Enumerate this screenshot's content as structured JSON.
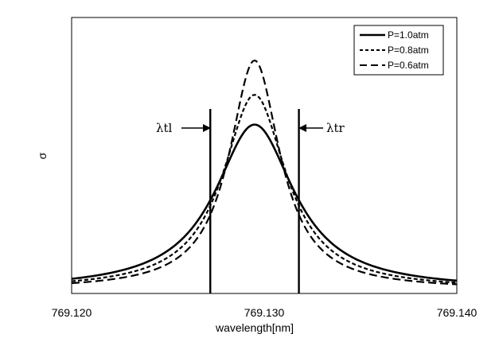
{
  "chart_data": {
    "type": "line",
    "title": "",
    "xlabel": "wavelength[nm]",
    "ylabel": "σ",
    "xlim": [
      769.12,
      769.14
    ],
    "xticks": [
      "769.120",
      "769.130",
      "769.140"
    ],
    "ylim": [
      0,
      1.0
    ],
    "grid": false,
    "legend": {
      "position": "top-right"
    },
    "center": 769.1295,
    "series": [
      {
        "name": "P=1.0atm",
        "dash": "solid",
        "peak": 0.72,
        "hwhm": 0.0025
      },
      {
        "name": "P=0.8atm",
        "dash": "short",
        "peak": 0.85,
        "hwhm": 0.002
      },
      {
        "name": "P=0.6atm",
        "dash": "long",
        "peak": 1.0,
        "hwhm": 0.0016
      }
    ],
    "annotations": [
      {
        "label": "λtl",
        "x": 769.1272,
        "side": "left"
      },
      {
        "label": "λtr",
        "x": 769.1318,
        "side": "right"
      }
    ]
  }
}
